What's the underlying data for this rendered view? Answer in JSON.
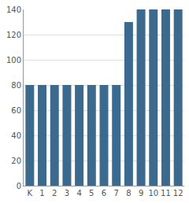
{
  "chart_data": {
    "type": "bar",
    "categories": [
      "K",
      "1",
      "2",
      "3",
      "4",
      "5",
      "6",
      "7",
      "8",
      "9",
      "10",
      "11",
      "12"
    ],
    "values": [
      80,
      80,
      80,
      80,
      80,
      80,
      80,
      80,
      130,
      140,
      140,
      140,
      140
    ],
    "color": "#3c6a8e",
    "ylim": [
      0,
      140
    ],
    "yticks": [
      0,
      20,
      40,
      60,
      80,
      100,
      120,
      140
    ],
    "grid": true
  }
}
